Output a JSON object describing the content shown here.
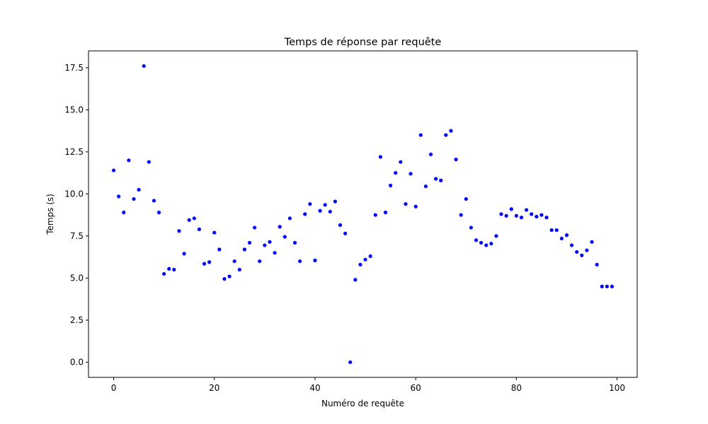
{
  "chart_data": {
    "type": "scatter",
    "title": "Temps de réponse par requête",
    "xlabel": "Numéro de requête",
    "ylabel": "Temps (s)",
    "xlim": [
      -5,
      104
    ],
    "ylim": [
      -0.9,
      18.5
    ],
    "xticks": [
      0,
      20,
      40,
      60,
      80,
      100
    ],
    "xtick_labels": [
      "0",
      "20",
      "40",
      "60",
      "80",
      "100"
    ],
    "yticks": [
      0,
      2.5,
      5,
      7.5,
      10,
      12.5,
      15,
      17.5
    ],
    "ytick_labels": [
      "0.0",
      "2.5",
      "5.0",
      "7.5",
      "10.0",
      "12.5",
      "15.0",
      "17.5"
    ],
    "grid": false,
    "marker_color": "#0000ff",
    "series": [
      {
        "x": [
          0,
          1,
          2,
          3,
          4,
          5,
          6,
          7,
          8,
          9,
          10,
          11,
          12,
          13,
          14,
          15,
          16,
          17,
          18,
          19,
          20,
          21,
          22,
          23,
          24,
          25,
          26,
          27,
          28,
          29,
          30,
          31,
          32,
          33,
          34,
          35,
          36,
          37,
          38,
          39,
          40,
          41,
          42,
          43,
          44,
          45,
          46,
          47,
          48,
          49,
          50,
          51,
          52,
          53,
          54,
          55,
          56,
          57,
          58,
          59,
          60,
          61,
          62,
          63,
          64,
          65,
          66,
          67,
          68,
          69,
          70,
          71,
          72,
          73,
          74,
          75,
          76,
          77,
          78,
          79,
          80,
          81,
          82,
          83,
          84,
          85,
          86,
          87,
          88,
          89,
          90,
          91,
          92,
          93,
          94,
          95,
          96,
          97,
          98,
          99
        ],
        "y": [
          11.4,
          9.85,
          8.9,
          12.0,
          9.7,
          10.25,
          17.6,
          11.9,
          9.6,
          8.9,
          5.25,
          5.55,
          5.5,
          7.8,
          6.45,
          8.45,
          8.55,
          7.9,
          5.85,
          5.95,
          7.7,
          6.7,
          4.95,
          5.1,
          6.0,
          5.5,
          6.7,
          7.1,
          8.0,
          6.0,
          6.95,
          7.15,
          6.5,
          8.05,
          7.45,
          8.55,
          7.1,
          6.0,
          8.8,
          9.4,
          6.05,
          9.0,
          9.35,
          8.95,
          9.55,
          8.15,
          7.65,
          0.0,
          4.9,
          5.8,
          6.1,
          6.3,
          8.75,
          12.2,
          8.9,
          10.5,
          11.25,
          11.9,
          9.4,
          11.2,
          9.25,
          13.5,
          10.45,
          12.35,
          10.9,
          10.8,
          13.5,
          13.75,
          12.05,
          8.75,
          9.7,
          8.0,
          7.25,
          7.1,
          6.95,
          7.05,
          7.5,
          8.8,
          8.7,
          9.1,
          8.7,
          8.6,
          9.05,
          8.8,
          8.65,
          8.75,
          8.6,
          7.85,
          7.85,
          7.35,
          7.55,
          6.95,
          6.55,
          6.35,
          6.65,
          7.15,
          5.8,
          4.5,
          4.5,
          4.5
        ]
      }
    ]
  }
}
